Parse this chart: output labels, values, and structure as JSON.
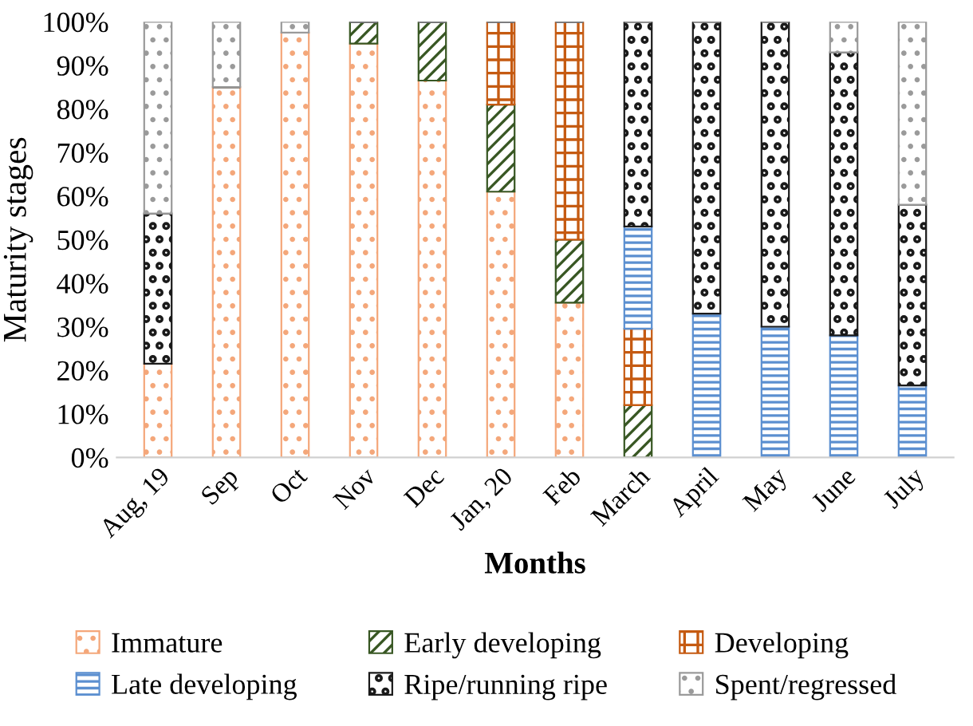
{
  "chart_data": {
    "type": "bar",
    "stacked": true,
    "xlabel": "Months",
    "ylabel": "Maturity stages",
    "categories": [
      "Aug, 19",
      "Sep",
      "Oct",
      "Nov",
      "Dec",
      "Jan, 20",
      "Feb",
      "March",
      "April",
      "May",
      "June",
      "July"
    ],
    "series": [
      {
        "name": "Immature",
        "color": "#f4a77a",
        "values": [
          21.5,
          85,
          97.5,
          95,
          86.5,
          61,
          35.5,
          0,
          0,
          0,
          0,
          0
        ]
      },
      {
        "name": "Early developing",
        "color": "#385723",
        "values": [
          0,
          0,
          0,
          5,
          13.5,
          20,
          14.5,
          12,
          0,
          0,
          0,
          0
        ]
      },
      {
        "name": "Developing",
        "color": "#c55a11",
        "values": [
          0,
          0,
          0,
          0,
          0,
          19,
          50,
          17.5,
          0,
          0,
          0,
          0
        ]
      },
      {
        "name": "Late developing",
        "color": "#5b8fd0",
        "values": [
          0,
          0,
          0,
          0,
          0,
          0,
          0,
          23.5,
          33,
          30,
          28,
          16.5
        ]
      },
      {
        "name": "Ripe/running ripe",
        "color": "#1a1a1a",
        "values": [
          34.5,
          0,
          0,
          0,
          0,
          0,
          0,
          47,
          67,
          70,
          65,
          41.5
        ]
      },
      {
        "name": "Spent/regressed",
        "color": "#9a9a9a",
        "values": [
          44,
          15,
          2.5,
          0,
          0,
          0,
          0,
          0,
          0,
          0,
          7,
          42
        ]
      }
    ],
    "ylim": [
      0,
      100
    ],
    "yticks": [
      {
        "value": 0,
        "label": "0%"
      },
      {
        "value": 10,
        "label": "10%"
      },
      {
        "value": 20,
        "label": "20%"
      },
      {
        "value": 30,
        "label": "30%"
      },
      {
        "value": 40,
        "label": "40%"
      },
      {
        "value": 50,
        "label": "50%"
      },
      {
        "value": 60,
        "label": "60%"
      },
      {
        "value": 70,
        "label": "70%"
      },
      {
        "value": 80,
        "label": "80%"
      },
      {
        "value": 90,
        "label": "90%"
      },
      {
        "value": 100,
        "label": "100%"
      }
    ],
    "grid": false,
    "legend": "bottom"
  }
}
